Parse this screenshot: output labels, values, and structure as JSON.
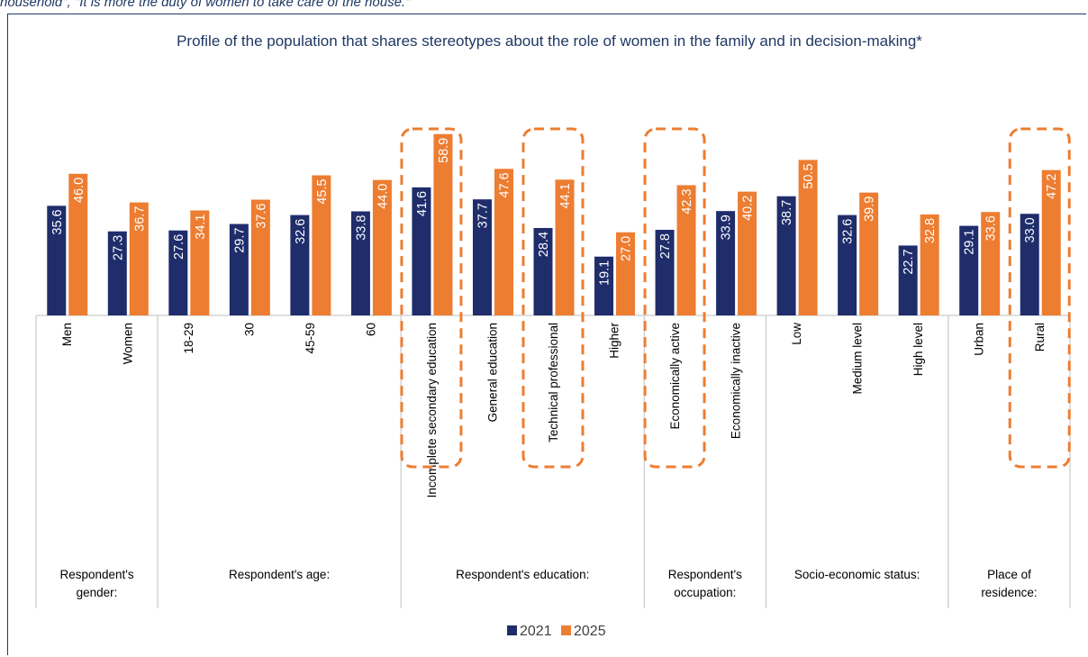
{
  "caption": "household\", \"It is more the duty of women to take care of the house.\"",
  "chart_data": {
    "type": "bar",
    "title": "Profile of the population that shares stereotypes about the role of women in the family and in decision-making*",
    "categories": [
      "Men",
      "Women",
      "18-29",
      "30",
      "45-59",
      "60",
      "Incomplete secondary education",
      "General education",
      "Technical professional",
      "Higher",
      "Economically active",
      "Economically inactive",
      "Low",
      "Medium level",
      "High level",
      "Urban",
      "Rural"
    ],
    "groups": [
      {
        "label": [
          "Respondent's",
          "gender:"
        ],
        "size": 2
      },
      {
        "label": [
          "Respondent's age:"
        ],
        "size": 4
      },
      {
        "label": [
          "Respondent's education:"
        ],
        "size": 4
      },
      {
        "label": [
          "Respondent's",
          "occupation:"
        ],
        "size": 2
      },
      {
        "label": [
          "Socio-economic status:"
        ],
        "size": 3
      },
      {
        "label": [
          "Place of",
          "residence:"
        ],
        "size": 2
      }
    ],
    "series": [
      {
        "name": "2021",
        "color": "#1f2d6b",
        "values": [
          35.6,
          27.3,
          27.6,
          29.7,
          32.6,
          33.8,
          41.6,
          37.7,
          28.4,
          19.1,
          27.8,
          33.9,
          38.7,
          32.6,
          22.7,
          29.1,
          33.0
        ],
        "value_labels": [
          "35.6",
          "27.3",
          "27.6",
          "29.7",
          "32.6",
          "33.8",
          "41.6",
          "37.7",
          "28.4",
          "19.1",
          "27.8",
          "33.9",
          "38.7",
          "32.6",
          "22.7",
          "29.1",
          "33.0"
        ]
      },
      {
        "name": "2025",
        "color": "#ed7d31",
        "values": [
          46.0,
          36.7,
          34.1,
          37.6,
          45.5,
          44.0,
          58.9,
          47.6,
          44.1,
          27.0,
          42.3,
          40.2,
          50.5,
          39.9,
          32.8,
          33.6,
          47.2
        ],
        "value_labels": [
          "46.0",
          "36.7",
          "34.1",
          "37.6",
          "45.5",
          "44.0",
          "58.9",
          "47.6",
          "44.1",
          "27.0",
          "42.3",
          "40.2",
          "50.5",
          "39.9",
          "32.8",
          "33.6",
          "47.2"
        ]
      }
    ],
    "highlight": [
      6,
      8,
      10,
      16
    ],
    "highlight_color": "#ed7d31",
    "ylim": [
      0,
      60
    ],
    "legend": "bottom"
  }
}
